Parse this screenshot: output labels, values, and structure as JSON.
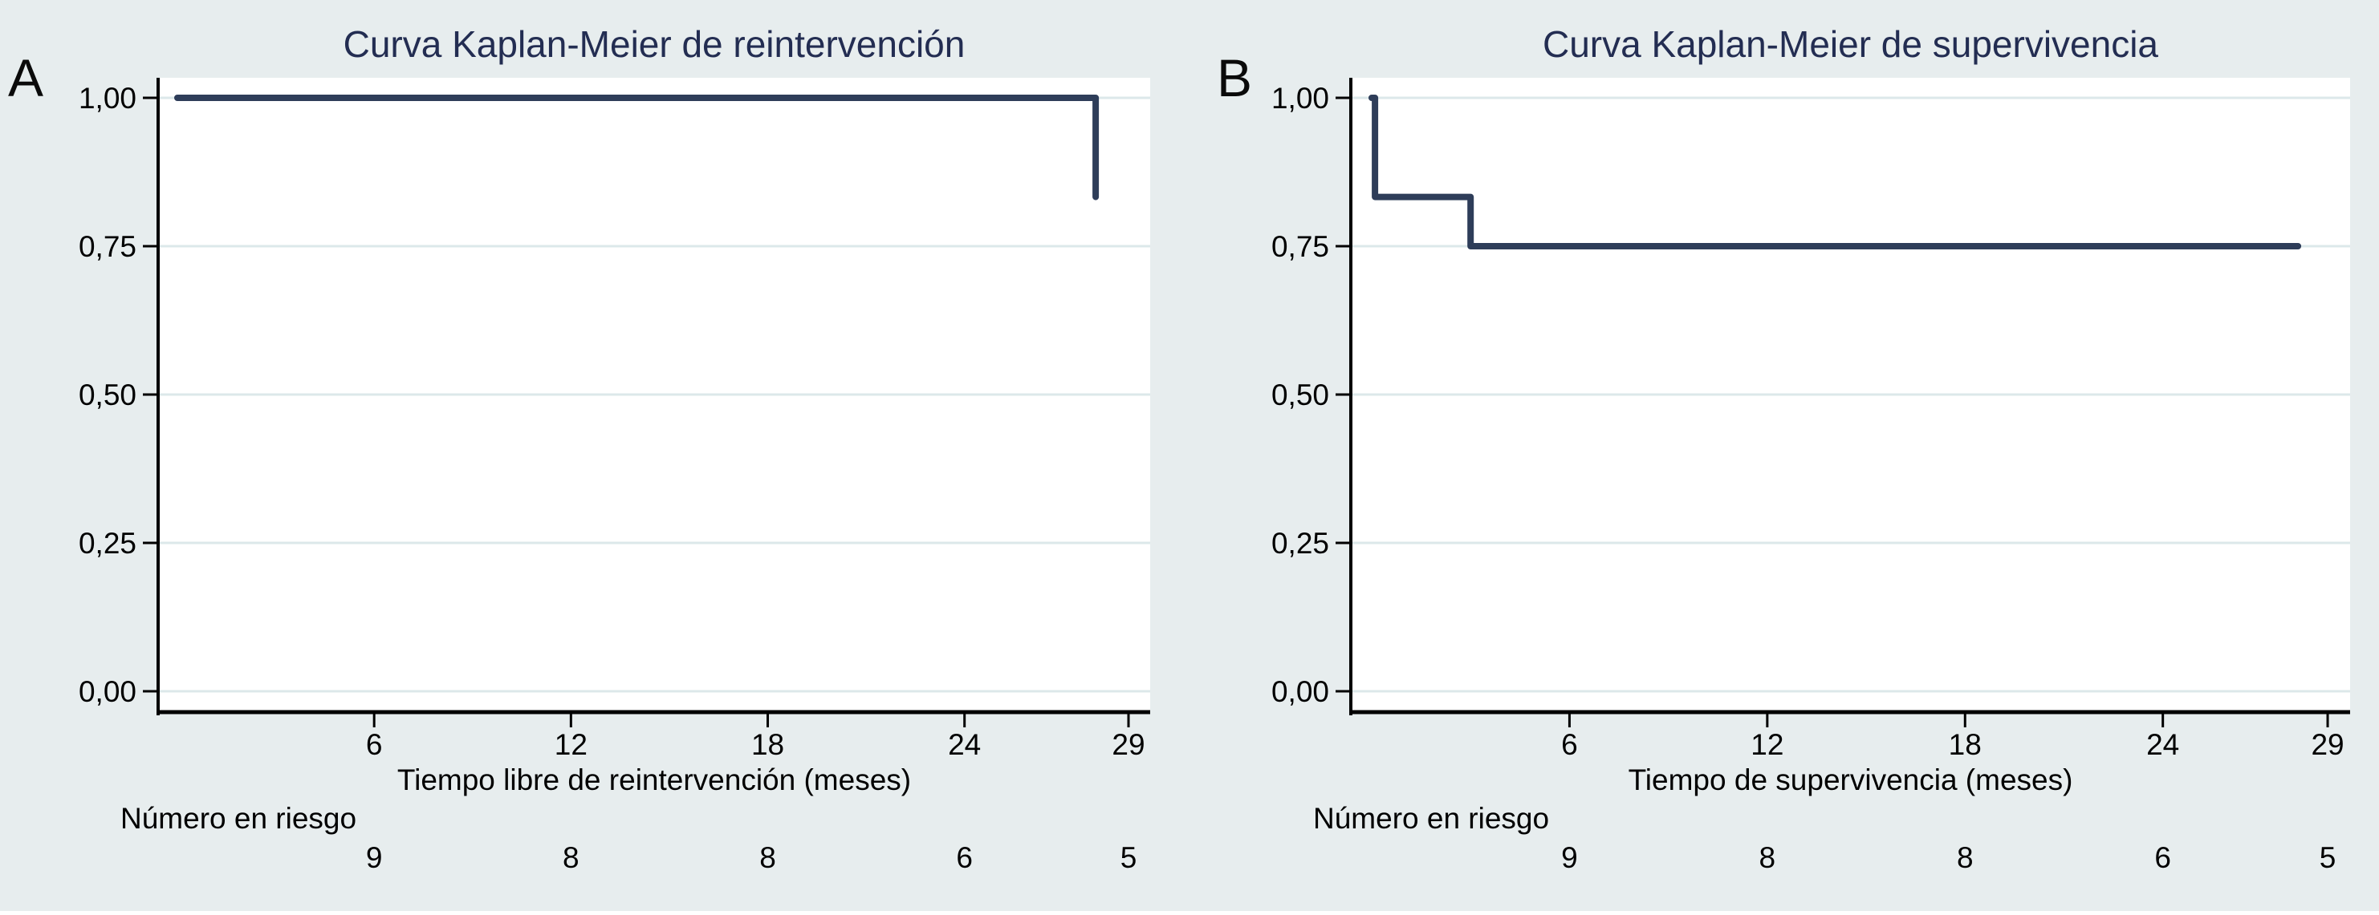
{
  "figure": {
    "background_color": "#e7edee",
    "colors": {
      "title": "#232d52",
      "curve": "#2e3d59",
      "grid": "#dce8ea",
      "plot_background": "#ffffff",
      "axis": "#000000",
      "text": "#000000"
    },
    "panels": [
      {
        "corner_label": "A",
        "title": "Curva Kaplan-Meier de reintervención",
        "xlabel": "Tiempo libre de reintervención (meses)",
        "risk_label": "Número en riesgo"
      },
      {
        "corner_label": "B",
        "title": "Curva Kaplan-Meier de supervivencia",
        "xlabel": "Tiempo de supervivencia (meses)",
        "risk_label": "Número en riesgo"
      }
    ]
  },
  "chart_data": [
    {
      "type": "line",
      "subtype": "kaplan-meier-step",
      "panel": "A",
      "title": "Curva Kaplan-Meier de reintervención",
      "xlabel": "Tiempo libre de reintervención (meses)",
      "ylabel": "",
      "xlim": [
        0,
        29.6
      ],
      "ylim": [
        0,
        1.0
      ],
      "x_ticks": [
        6,
        12,
        18,
        24,
        29
      ],
      "x_tick_labels": [
        "6",
        "12",
        "18",
        "24",
        "29"
      ],
      "y_ticks": [
        0.0,
        0.25,
        0.5,
        0.75,
        1.0
      ],
      "y_tick_labels": [
        "0,00",
        "0,25",
        "0,50",
        "0,75",
        "1,00"
      ],
      "grid": "horizontal",
      "legend": "none",
      "steps": [
        [
          0,
          1.0
        ],
        [
          28.0,
          1.0
        ],
        [
          28.0,
          0.833
        ]
      ],
      "number_at_risk": {
        "label": "Número en riesgo",
        "times": [
          6,
          12,
          18,
          24,
          29
        ],
        "values": [
          9,
          8,
          8,
          6,
          5
        ]
      }
    },
    {
      "type": "line",
      "subtype": "kaplan-meier-step",
      "panel": "B",
      "title": "Curva Kaplan-Meier de supervivencia",
      "xlabel": "Tiempo de supervivencia (meses)",
      "ylabel": "",
      "xlim": [
        0,
        29.6
      ],
      "ylim": [
        0,
        1.0
      ],
      "x_ticks": [
        6,
        12,
        18,
        24,
        29
      ],
      "x_tick_labels": [
        "6",
        "12",
        "18",
        "24",
        "29"
      ],
      "y_ticks": [
        0.0,
        0.25,
        0.5,
        0.75,
        1.0
      ],
      "y_tick_labels": [
        "0,00",
        "0,25",
        "0,50",
        "0,75",
        "1,00"
      ],
      "grid": "horizontal",
      "legend": "none",
      "steps": [
        [
          0,
          1.0
        ],
        [
          0.1,
          1.0
        ],
        [
          0.1,
          0.833
        ],
        [
          3.0,
          0.833
        ],
        [
          3.0,
          0.75
        ],
        [
          28.1,
          0.75
        ]
      ],
      "number_at_risk": {
        "label": "Número en riesgo",
        "times": [
          6,
          12,
          18,
          24,
          29
        ],
        "values": [
          9,
          8,
          8,
          6,
          5
        ]
      }
    }
  ]
}
